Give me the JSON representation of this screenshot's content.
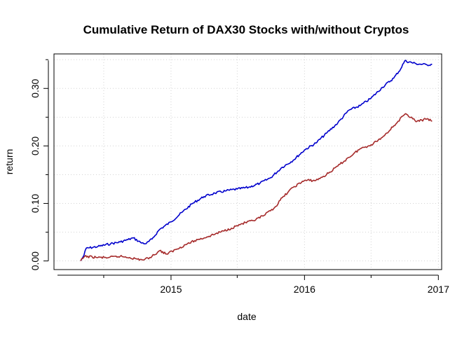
{
  "chart_data": {
    "type": "line",
    "title": "Cumulative Return of DAX30 Stocks with/without Cryptos",
    "xlabel": "date",
    "ylabel": "return",
    "x_ticks": [
      {
        "label": "2015",
        "value": "2015-01-01"
      },
      {
        "label": "2016",
        "value": "2016-01-01"
      },
      {
        "label": "2017",
        "value": "2017-01-01"
      }
    ],
    "y_ticks": [
      {
        "label": "0.00",
        "value": 0.0
      },
      {
        "label": "0.10",
        "value": 0.1
      },
      {
        "label": "0.20",
        "value": 0.2
      },
      {
        "label": "0.30",
        "value": 0.3
      }
    ],
    "xlim": [
      "2014-02-15",
      "2017-01-10"
    ],
    "ylim": [
      -0.015,
      0.36
    ],
    "grid": true,
    "grid_style": "dotted",
    "series": [
      {
        "color": "#0000cc",
        "points": [
          [
            "2014-04-29",
            0.0
          ],
          [
            "2014-05-08",
            0.01
          ],
          [
            "2014-05-14",
            0.022
          ],
          [
            "2014-06-15",
            0.025
          ],
          [
            "2014-07-20",
            0.03
          ],
          [
            "2014-08-15",
            0.033
          ],
          [
            "2014-09-05",
            0.037
          ],
          [
            "2014-09-20",
            0.04
          ],
          [
            "2014-10-10",
            0.032
          ],
          [
            "2014-10-25",
            0.03
          ],
          [
            "2014-11-10",
            0.038
          ],
          [
            "2014-12-01",
            0.055
          ],
          [
            "2015-01-01",
            0.068
          ],
          [
            "2015-02-01",
            0.085
          ],
          [
            "2015-03-01",
            0.1
          ],
          [
            "2015-04-01",
            0.112
          ],
          [
            "2015-05-01",
            0.118
          ],
          [
            "2015-06-01",
            0.122
          ],
          [
            "2015-07-01",
            0.125
          ],
          [
            "2015-08-01",
            0.128
          ],
          [
            "2015-09-01",
            0.135
          ],
          [
            "2015-10-01",
            0.145
          ],
          [
            "2015-11-01",
            0.163
          ],
          [
            "2015-12-01",
            0.175
          ],
          [
            "2016-01-01",
            0.193
          ],
          [
            "2016-02-01",
            0.205
          ],
          [
            "2016-03-01",
            0.222
          ],
          [
            "2016-04-01",
            0.24
          ],
          [
            "2016-05-01",
            0.262
          ],
          [
            "2016-06-01",
            0.27
          ],
          [
            "2016-07-01",
            0.283
          ],
          [
            "2016-08-01",
            0.302
          ],
          [
            "2016-09-01",
            0.318
          ],
          [
            "2016-09-20",
            0.334
          ],
          [
            "2016-10-01",
            0.348
          ],
          [
            "2016-11-01",
            0.343
          ],
          [
            "2016-12-01",
            0.341
          ],
          [
            "2016-12-15",
            0.342
          ]
        ]
      },
      {
        "color": "#a52a2a",
        "points": [
          [
            "2014-04-29",
            0.0
          ],
          [
            "2014-05-10",
            0.008
          ],
          [
            "2014-06-15",
            0.006
          ],
          [
            "2014-07-15",
            0.006
          ],
          [
            "2014-08-15",
            0.008
          ],
          [
            "2014-09-10",
            0.006
          ],
          [
            "2014-10-01",
            0.003
          ],
          [
            "2014-10-20",
            0.002
          ],
          [
            "2014-11-10",
            0.008
          ],
          [
            "2014-12-01",
            0.018
          ],
          [
            "2014-12-20",
            0.012
          ],
          [
            "2015-01-15",
            0.02
          ],
          [
            "2015-02-15",
            0.03
          ],
          [
            "2015-03-15",
            0.037
          ],
          [
            "2015-04-15",
            0.043
          ],
          [
            "2015-05-15",
            0.05
          ],
          [
            "2015-06-15",
            0.057
          ],
          [
            "2015-07-15",
            0.065
          ],
          [
            "2015-08-15",
            0.07
          ],
          [
            "2015-09-15",
            0.08
          ],
          [
            "2015-10-15",
            0.095
          ],
          [
            "2015-11-01",
            0.11
          ],
          [
            "2015-12-01",
            0.128
          ],
          [
            "2016-01-01",
            0.14
          ],
          [
            "2016-02-01",
            0.14
          ],
          [
            "2016-03-01",
            0.15
          ],
          [
            "2016-04-01",
            0.165
          ],
          [
            "2016-05-01",
            0.18
          ],
          [
            "2016-06-01",
            0.195
          ],
          [
            "2016-07-01",
            0.202
          ],
          [
            "2016-08-01",
            0.215
          ],
          [
            "2016-09-01",
            0.235
          ],
          [
            "2016-10-01",
            0.255
          ],
          [
            "2016-10-20",
            0.25
          ],
          [
            "2016-11-01",
            0.242
          ],
          [
            "2016-12-01",
            0.247
          ],
          [
            "2016-12-15",
            0.243
          ]
        ]
      }
    ]
  }
}
